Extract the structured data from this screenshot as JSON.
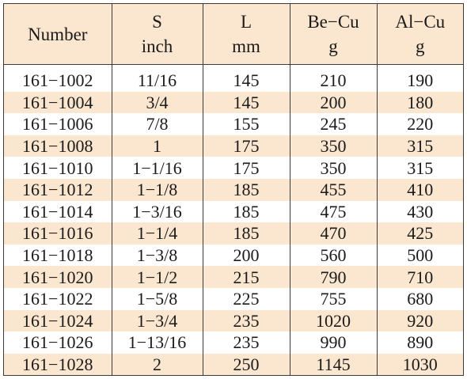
{
  "table": {
    "headers": [
      {
        "line1": "Number",
        "line2": ""
      },
      {
        "line1": "S",
        "line2": "inch"
      },
      {
        "line1": "L",
        "line2": "mm"
      },
      {
        "line1": "Be−Cu",
        "line2": "g"
      },
      {
        "line1": "Al−Cu",
        "line2": "g"
      }
    ],
    "rows": [
      [
        "161−1002",
        "11/16",
        "145",
        "210",
        "190"
      ],
      [
        "161−1004",
        "3/4",
        "145",
        "200",
        "180"
      ],
      [
        "161−1006",
        "7/8",
        "155",
        "245",
        "220"
      ],
      [
        "161−1008",
        "1",
        "175",
        "350",
        "315"
      ],
      [
        "161−1010",
        "1−1/16",
        "175",
        "350",
        "315"
      ],
      [
        "161−1012",
        "1−1/8",
        "185",
        "455",
        "410"
      ],
      [
        "161−1014",
        "1−3/16",
        "185",
        "475",
        "430"
      ],
      [
        "161−1016",
        "1−1/4",
        "185",
        "470",
        "425"
      ],
      [
        "161−1018",
        "1−3/8",
        "200",
        "560",
        "500"
      ],
      [
        "161−1020",
        "1−1/2",
        "215",
        "790",
        "710"
      ],
      [
        "161−1022",
        "1−5/8",
        "225",
        "755",
        "680"
      ],
      [
        "161−1024",
        "1−3/4",
        "235",
        "1020",
        "920"
      ],
      [
        "161−1026",
        "1−13/16",
        "235",
        "990",
        "890"
      ],
      [
        "161−1028",
        "2",
        "250",
        "1145",
        "1030"
      ]
    ],
    "stripe_color": "#fbe6cf",
    "border_color": "#3a3a3a"
  }
}
